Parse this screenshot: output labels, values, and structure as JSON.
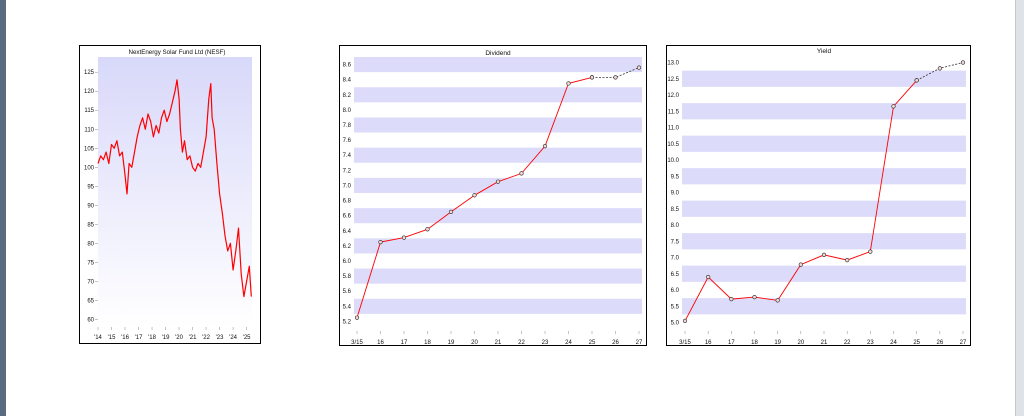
{
  "colors": {
    "line": "#ff0000",
    "band": "#dcdcfa",
    "border": "#000000",
    "dashed": "#333333"
  },
  "chart_data": [
    {
      "type": "line",
      "title": "NextEnergy Solar Fund Ltd (NESF)",
      "xlabel": "",
      "ylabel": "",
      "x_ticks": [
        "'14",
        "'15",
        "'16",
        "'17",
        "'18",
        "'19",
        "'20",
        "'21",
        "'22",
        "'23",
        "'24",
        "'25"
      ],
      "y_ticks": [
        "60",
        "65",
        "70",
        "75",
        "80",
        "85",
        "90",
        "95",
        "100",
        "105",
        "110",
        "115",
        "120",
        "125"
      ],
      "ylim": [
        58,
        129
      ],
      "xlim": [
        2014.0,
        2025.4
      ],
      "series": [
        {
          "x": [
            2014.0,
            2014.2,
            2014.4,
            2014.6,
            2014.8,
            2015.0,
            2015.2,
            2015.4,
            2015.6,
            2015.8,
            2016.0,
            2016.15,
            2016.3,
            2016.5,
            2016.7,
            2016.9,
            2017.1,
            2017.3,
            2017.5,
            2017.7,
            2017.9,
            2018.1,
            2018.3,
            2018.5,
            2018.7,
            2018.9,
            2019.1,
            2019.3,
            2019.5,
            2019.7,
            2019.85,
            2020.0,
            2020.1,
            2020.25,
            2020.4,
            2020.6,
            2020.8,
            2021.0,
            2021.2,
            2021.4,
            2021.6,
            2021.8,
            2022.0,
            2022.2,
            2022.35,
            2022.45,
            2022.6,
            2022.8,
            2023.0,
            2023.2,
            2023.4,
            2023.6,
            2023.8,
            2024.0,
            2024.2,
            2024.4,
            2024.6,
            2024.8,
            2025.0,
            2025.2,
            2025.35
          ],
          "y": [
            101,
            103,
            102,
            104,
            101,
            106,
            105,
            107,
            103,
            104,
            98,
            93,
            101,
            100,
            104,
            108,
            111,
            113,
            110,
            114,
            112,
            108,
            111,
            109,
            113,
            115,
            112,
            114,
            117,
            120,
            123,
            118,
            110,
            104,
            107,
            102,
            103,
            100,
            99,
            101,
            100,
            104,
            108,
            118,
            122,
            113,
            110,
            101,
            93,
            88,
            82,
            78,
            80,
            73,
            78,
            84,
            72,
            66,
            70,
            74,
            66
          ]
        }
      ]
    },
    {
      "type": "line",
      "title": "Dividend",
      "xlabel": "",
      "ylabel": "",
      "x_ticks": [
        "3/15",
        "16",
        "17",
        "18",
        "19",
        "20",
        "21",
        "22",
        "23",
        "24",
        "25",
        "26",
        "27"
      ],
      "y_ticks": [
        "5.2",
        "5.4",
        "5.6",
        "5.8",
        "6.0",
        "6.2",
        "6.4",
        "6.6",
        "6.8",
        "7.0",
        "7.2",
        "7.4",
        "7.6",
        "7.8",
        "8.0",
        "8.2",
        "8.4",
        "8.6"
      ],
      "ylim": [
        5.1,
        8.7
      ],
      "series": [
        {
          "style": "solid",
          "x": [
            "3/15",
            "16",
            "17",
            "18",
            "19",
            "20",
            "21",
            "22",
            "23",
            "24",
            "25"
          ],
          "y": [
            5.25,
            6.25,
            6.31,
            6.42,
            6.65,
            6.87,
            7.05,
            7.16,
            7.52,
            8.35,
            8.43
          ]
        },
        {
          "style": "dashed",
          "x": [
            "25",
            "26",
            "27"
          ],
          "y": [
            8.43,
            8.43,
            8.56
          ]
        }
      ]
    },
    {
      "type": "line",
      "title": "Yield",
      "xlabel": "",
      "ylabel": "",
      "x_ticks": [
        "3/15",
        "16",
        "17",
        "18",
        "19",
        "20",
        "21",
        "22",
        "23",
        "24",
        "25",
        "26",
        "27"
      ],
      "y_ticks": [
        "5.0",
        "5.5",
        "6.0",
        "6.5",
        "7.0",
        "7.5",
        "8.0",
        "8.5",
        "9.0",
        "9.5",
        "10.0",
        "10.5",
        "11.0",
        "11.5",
        "12.0",
        "12.5",
        "13.0"
      ],
      "ylim": [
        4.8,
        13.2
      ],
      "series": [
        {
          "style": "solid",
          "x": [
            "3/15",
            "16",
            "17",
            "18",
            "19",
            "20",
            "21",
            "22",
            "23",
            "24",
            "25"
          ],
          "y": [
            5.05,
            6.4,
            5.72,
            5.78,
            5.68,
            6.78,
            7.08,
            6.92,
            7.18,
            11.65,
            12.45
          ]
        },
        {
          "style": "dashed",
          "x": [
            "25",
            "26",
            "27"
          ],
          "y": [
            12.45,
            12.82,
            13.0
          ]
        }
      ]
    }
  ]
}
